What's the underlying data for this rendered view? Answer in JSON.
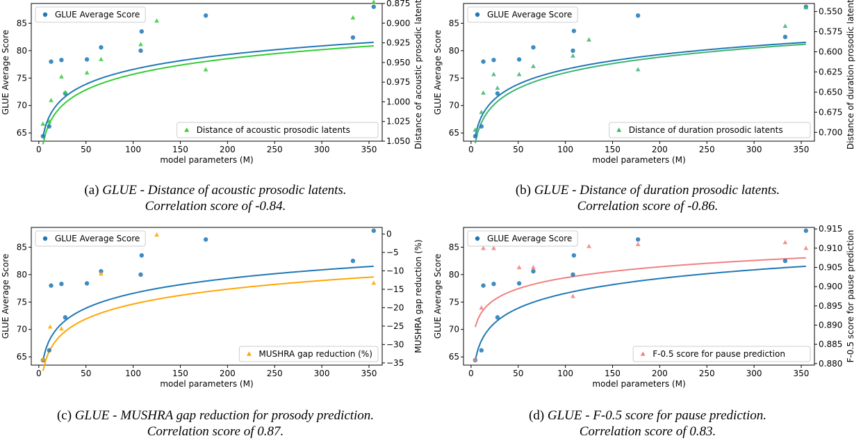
{
  "panels": [
    {
      "caption": {
        "label": "(a)",
        "line1": "GLUE - Distance of acoustic prosodic latents.",
        "line2": "Correlation score of -0.84."
      },
      "chart_data": {
        "type": "scatter",
        "xlabel": "model parameters (M)",
        "ylabel": "GLUE Average Score",
        "ylabel_right": "Distance of acoustic prosodic latents",
        "xlim": [
          -8,
          364
        ],
        "ylim": [
          63.5,
          88.6
        ],
        "ylim_right": [
          1.05,
          0.875
        ],
        "right_axis_inverted": true,
        "xticks": [
          0,
          50,
          100,
          150,
          200,
          250,
          300,
          350
        ],
        "yticks": [
          65,
          70,
          75,
          80,
          85
        ],
        "yticks_right": [
          "0.875",
          "0.900",
          "0.925",
          "0.950",
          "0.975",
          "1.000",
          "1.025",
          "1.050"
        ],
        "legend_left": "GLUE Average Score",
        "legend_right": "Distance of acoustic prosodic latents",
        "legend_left_position": "top-left",
        "legend_right_position": "lower-right",
        "colors": {
          "glue": "#1f77b4",
          "second": "#33cc33"
        },
        "series": [
          {
            "name": "GLUE Average Score",
            "axis": "left",
            "marker": "circle",
            "x": [
              4.4,
              11,
              13,
              24,
              28,
              51,
              66,
              108,
              109,
              177,
              333,
              355
            ],
            "y": [
              64.4,
              66.2,
              78.0,
              78.3,
              72.2,
              78.4,
              80.6,
              80.0,
              83.5,
              86.4,
              82.4,
              88.0
            ]
          },
          {
            "name": "Distance of acoustic prosodic latents",
            "axis": "right",
            "marker": "triangle",
            "x": [
              4.4,
              11,
              13,
              24,
              28,
              51,
              66,
              108,
              125,
              177,
              333,
              355
            ],
            "y": [
              1.028,
              1.025,
              0.998,
              0.968,
              0.988,
              0.963,
              0.946,
              0.927,
              0.897,
              0.959,
              0.893,
              0.873
            ]
          }
        ],
        "fits": [
          {
            "axis": "left",
            "a": 64.4,
            "b": 3.9,
            "x0": 4.4,
            "x1": 355
          },
          {
            "axis": "right",
            "a": 1.054,
            "b": -0.0285,
            "x0": 4.4,
            "x1": 355
          }
        ]
      }
    },
    {
      "caption": {
        "label": "(b)",
        "line1": "GLUE - Distance of duration prosodic latents.",
        "line2": "Correlation score of -0.86."
      },
      "chart_data": {
        "type": "scatter",
        "xlabel": "model parameters (M)",
        "ylabel": "GLUE Average Score",
        "ylabel_right": "Distance of duration prosodic latents",
        "xlim": [
          -8,
          364
        ],
        "ylim": [
          63.5,
          88.6
        ],
        "ylim_right": [
          0.711,
          0.54
        ],
        "right_axis_inverted": true,
        "xticks": [
          0,
          50,
          100,
          150,
          200,
          250,
          300,
          350
        ],
        "yticks": [
          65,
          70,
          75,
          80,
          85
        ],
        "yticks_right": [
          "0.550",
          "0.575",
          "0.600",
          "0.625",
          "0.650",
          "0.675",
          "0.700"
        ],
        "legend_left": "GLUE Average Score",
        "legend_right": "Distance of duration prosodic latents",
        "legend_left_position": "top-left",
        "legend_right_position": "lower-right",
        "colors": {
          "glue": "#1f77b4",
          "second": "#3cb371"
        },
        "series": [
          {
            "name": "GLUE Average Score",
            "axis": "left",
            "marker": "circle",
            "x": [
              4.4,
              11,
              13,
              24,
              28,
              51,
              66,
              108,
              109,
              177,
              333,
              355
            ],
            "y": [
              64.4,
              66.2,
              78.0,
              78.3,
              72.2,
              78.4,
              80.6,
              80.0,
              83.6,
              86.4,
              82.5,
              88.0
            ]
          },
          {
            "name": "Distance of duration prosodic latents",
            "axis": "right",
            "marker": "triangle",
            "x": [
              4.4,
              11,
              13,
              24,
              28,
              51,
              66,
              108,
              125,
              177,
              333,
              355
            ],
            "y": [
              0.697,
              0.675,
              0.651,
              0.628,
              0.645,
              0.628,
              0.618,
              0.605,
              0.585,
              0.622,
              0.568,
              0.545
            ]
          }
        ],
        "fits": [
          {
            "axis": "left",
            "a": 64.4,
            "b": 3.9,
            "x0": 4.4,
            "x1": 355
          },
          {
            "axis": "right",
            "a": 0.7135,
            "b": -0.028,
            "x0": 4.4,
            "x1": 355
          }
        ]
      }
    },
    {
      "caption": {
        "label": "(c)",
        "line1": "GLUE - MUSHRA gap reduction for prosody prediction.",
        "line2": "Correlation score of 0.87."
      },
      "chart_data": {
        "type": "scatter",
        "xlabel": "model parameters (M)",
        "ylabel": "GLUE Average Score",
        "ylabel_right": "MUSHRA gap reduction (%)",
        "xlim": [
          -8,
          364
        ],
        "ylim": [
          63.5,
          88.6
        ],
        "ylim_right": [
          -35.6,
          1.8
        ],
        "right_axis_inverted": false,
        "xticks": [
          0,
          50,
          100,
          150,
          200,
          250,
          300,
          350
        ],
        "yticks": [
          65,
          70,
          75,
          80,
          85
        ],
        "yticks_right": [
          "0",
          "−5",
          "−10",
          "−15",
          "−20",
          "−25",
          "−30",
          "−35"
        ],
        "yticks_right_values": [
          0,
          -5,
          -10,
          -15,
          -20,
          -25,
          -30,
          -35
        ],
        "legend_left": "GLUE Average Score",
        "legend_right": "MUSHRA gap reduction (%)",
        "legend_left_position": "top-left",
        "legend_right_position": "lower-right",
        "colors": {
          "glue": "#1f77b4",
          "second": "#ffa500"
        },
        "series": [
          {
            "name": "GLUE Average Score",
            "axis": "left",
            "marker": "circle",
            "x": [
              4.4,
              11,
              13,
              24,
              28,
              51,
              66,
              108,
              109,
              177,
              333,
              355
            ],
            "y": [
              64.4,
              66.2,
              78.0,
              78.3,
              72.2,
              78.4,
              80.6,
              80.0,
              83.5,
              86.4,
              82.5,
              88.0
            ]
          },
          {
            "name": "MUSHRA gap reduction (%)",
            "axis": "right",
            "marker": "triangle",
            "x": [
              4.4,
              12,
              24,
              66,
              125,
              355
            ],
            "y": [
              -34.0,
              -25.2,
              -25.7,
              -10.8,
              -0.2,
              -13.3
            ]
          }
        ],
        "fits": [
          {
            "axis": "left",
            "a": 64.4,
            "b": 3.9,
            "x0": 4.4,
            "x1": 355
          },
          {
            "axis": "right",
            "a": -37.2,
            "b": 5.82,
            "x0": 4.4,
            "x1": 355
          }
        ]
      }
    },
    {
      "caption": {
        "label": "(d)",
        "line1": "GLUE - F-0.5 score for pause prediction.",
        "line2": "Correlation score of 0.83."
      },
      "chart_data": {
        "type": "scatter",
        "xlabel": "model parameters (M)",
        "ylabel": "GLUE Average Score",
        "ylabel_right": "F-0.5 score for pause prediction",
        "xlim": [
          -8,
          364
        ],
        "ylim": [
          63.5,
          88.6
        ],
        "ylim_right": [
          0.8796,
          0.9154
        ],
        "right_axis_inverted": false,
        "xticks": [
          0,
          50,
          100,
          150,
          200,
          250,
          300,
          350
        ],
        "yticks": [
          65,
          70,
          75,
          80,
          85
        ],
        "yticks_right": [
          "0.880",
          "0.885",
          "0.890",
          "0.895",
          "0.900",
          "0.905",
          "0.910",
          "0.915"
        ],
        "yticks_right_values": [
          0.88,
          0.885,
          0.89,
          0.895,
          0.9,
          0.905,
          0.91,
          0.915
        ],
        "legend_left": "GLUE Average Score",
        "legend_right": "F-0.5 score for pause prediction",
        "legend_left_position": "top-left",
        "legend_right_position": "lower-right",
        "colors": {
          "glue": "#1f77b4",
          "second": "#f08080"
        },
        "series": [
          {
            "name": "GLUE Average Score",
            "axis": "left",
            "marker": "circle",
            "x": [
              4.4,
              11,
              13,
              24,
              28,
              51,
              66,
              108,
              109,
              177,
              333,
              355
            ],
            "y": [
              64.4,
              66.2,
              78.0,
              78.3,
              72.2,
              78.4,
              80.6,
              80.0,
              83.5,
              86.4,
              82.5,
              88.0
            ]
          },
          {
            "name": "F-0.5 score for pause prediction",
            "axis": "right",
            "marker": "triangle",
            "x": [
              4.4,
              11,
              13,
              24,
              51,
              66,
              108,
              109,
              125,
              177,
              333,
              355
            ],
            "y": [
              0.881,
              0.8945,
              0.91,
              0.91,
              0.905,
              0.905,
              0.8975,
              0.911,
              0.9105,
              0.911,
              0.9115,
              0.91
            ]
          }
        ],
        "fits": [
          {
            "axis": "right",
            "a": 0.8895,
            "b": 0.0041,
            "x0": 4.4,
            "x1": 355
          },
          {
            "axis": "left",
            "a": 64.4,
            "b": 3.9,
            "x0": 4.4,
            "x1": 355
          }
        ]
      }
    }
  ]
}
